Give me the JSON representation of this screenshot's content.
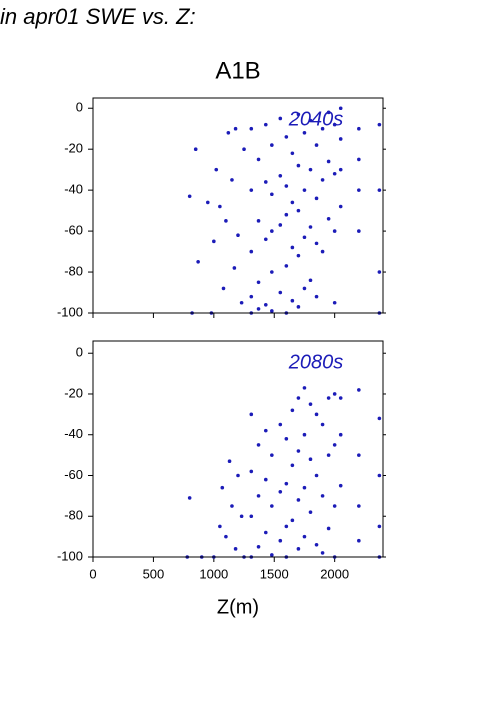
{
  "page_title": "in apr01 SWE vs. Z:",
  "chart_data": [
    {
      "type": "scatter",
      "title": "A1B",
      "annotation": "2040s",
      "color": "#1c1cb8",
      "xlim": [
        0,
        2400
      ],
      "ylim": [
        -100,
        5
      ],
      "xticks": [
        0,
        500,
        1000,
        1500,
        2000
      ],
      "yticks": [
        0,
        -20,
        -40,
        -60,
        -80,
        -100
      ],
      "show_xtick_labels": false,
      "series": [
        {
          "x": [
            800,
            820,
            850,
            870,
            950,
            980,
            1000,
            1020,
            1050,
            1080,
            1100,
            1120,
            1150,
            1170,
            1180,
            1200,
            1230,
            1250,
            1310,
            1310,
            1310,
            1310,
            1310,
            1370,
            1370,
            1370,
            1370,
            1430,
            1430,
            1430,
            1430,
            1480,
            1480,
            1480,
            1480,
            1480,
            1550,
            1550,
            1550,
            1550,
            1600,
            1600,
            1600,
            1600,
            1600,
            1650,
            1650,
            1650,
            1650,
            1700,
            1700,
            1700,
            1700,
            1700,
            1750,
            1750,
            1750,
            1750,
            1800,
            1800,
            1800,
            1800,
            1850,
            1850,
            1850,
            1850,
            1900,
            1900,
            1900,
            1950,
            1950,
            1950,
            2000,
            2000,
            2000,
            2000,
            2050,
            2050,
            2050,
            2050,
            2200,
            2200,
            2200,
            2200,
            2370,
            2370,
            2370,
            2370
          ],
          "values": [
            -43,
            -100,
            -20,
            -75,
            -46,
            -100,
            -65,
            -30,
            -48,
            -88,
            -55,
            -12,
            -35,
            -78,
            -10,
            -62,
            -95,
            -20,
            -10,
            -40,
            -70,
            -92,
            -100,
            -25,
            -55,
            -85,
            -98,
            -8,
            -36,
            -64,
            -96,
            -18,
            -42,
            -60,
            -80,
            -99,
            -5,
            -33,
            -57,
            -90,
            -14,
            -38,
            -52,
            -77,
            -100,
            -22,
            -46,
            -68,
            -94,
            -3,
            -28,
            -50,
            -72,
            -97,
            -12,
            -40,
            -63,
            -88,
            -6,
            -30,
            -58,
            -84,
            -18,
            -44,
            -66,
            -92,
            -10,
            -35,
            -70,
            -2,
            -26,
            -54,
            -8,
            -32,
            -60,
            -95,
            0,
            -15,
            -30,
            -48,
            -10,
            -25,
            -40,
            -60,
            -8,
            -40,
            -80,
            -100
          ]
        }
      ]
    },
    {
      "type": "scatter",
      "annotation": "2080s",
      "xlabel": "Z(m)",
      "color": "#1c1cb8",
      "xlim": [
        0,
        2400
      ],
      "ylim": [
        -100,
        6
      ],
      "xticks": [
        0,
        500,
        1000,
        1500,
        2000
      ],
      "yticks": [
        0,
        -20,
        -40,
        -60,
        -80,
        -100
      ],
      "show_xtick_labels": true,
      "series": [
        {
          "x": [
            800,
            780,
            900,
            1000,
            1050,
            1070,
            1100,
            1130,
            1150,
            1180,
            1200,
            1230,
            1250,
            1310,
            1310,
            1310,
            1310,
            1370,
            1370,
            1370,
            1430,
            1430,
            1430,
            1480,
            1480,
            1480,
            1550,
            1550,
            1550,
            1600,
            1600,
            1600,
            1600,
            1650,
            1650,
            1650,
            1700,
            1700,
            1700,
            1700,
            1750,
            1750,
            1750,
            1750,
            1800,
            1800,
            1800,
            1850,
            1850,
            1850,
            1900,
            1900,
            1900,
            1950,
            1950,
            1950,
            2000,
            2000,
            2000,
            2000,
            2050,
            2050,
            2050,
            2200,
            2200,
            2200,
            2200,
            2370,
            2370,
            2370,
            2370
          ],
          "values": [
            -71,
            -100,
            -100,
            -100,
            -85,
            -66,
            -90,
            -53,
            -75,
            -96,
            -60,
            -80,
            -100,
            -30,
            -58,
            -80,
            -100,
            -45,
            -70,
            -95,
            -38,
            -62,
            -88,
            -50,
            -75,
            -99,
            -35,
            -68,
            -92,
            -42,
            -64,
            -85,
            -100,
            -28,
            -55,
            -82,
            -22,
            -48,
            -72,
            -96,
            -17,
            -40,
            -66,
            -90,
            -25,
            -52,
            -78,
            -30,
            -60,
            -94,
            -35,
            -70,
            -98,
            -22,
            -50,
            -86,
            -20,
            -45,
            -75,
            -100,
            -22,
            -40,
            -65,
            -18,
            -50,
            -75,
            -92,
            -32,
            -60,
            -85,
            -100
          ]
        }
      ]
    }
  ]
}
